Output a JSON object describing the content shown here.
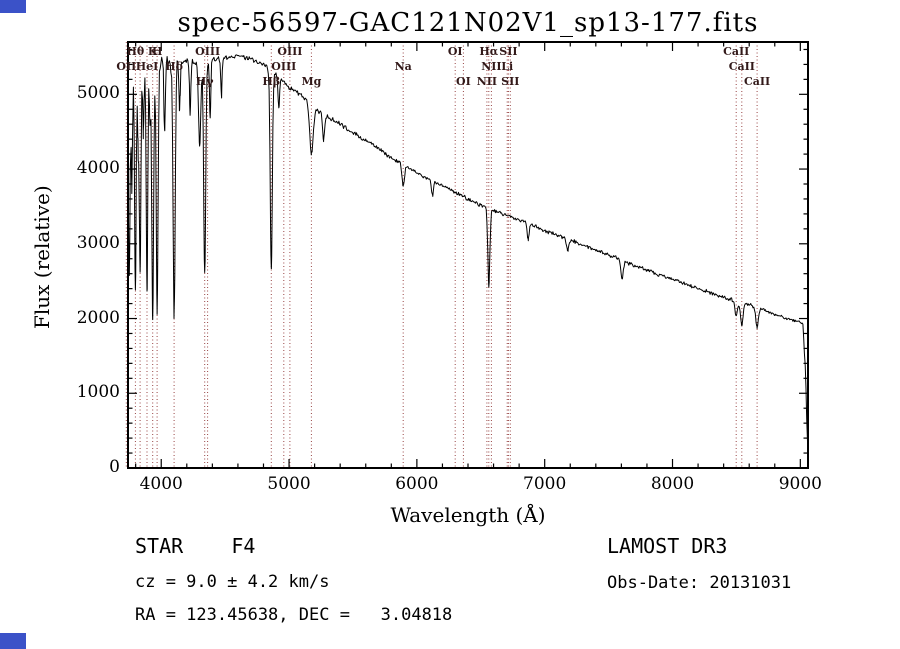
{
  "artifacts": {
    "corner_color": "#3b52c8"
  },
  "chart_data": {
    "type": "line",
    "title": "spec-56597-GAC121N02V1_sp13-177.fits",
    "xlabel": "Wavelength (Å)",
    "ylabel": "Flux (relative)",
    "xlim": [
      3740,
      9060
    ],
    "ylim": [
      0,
      5700
    ],
    "x_ticks": [
      4000,
      5000,
      6000,
      7000,
      8000,
      9000
    ],
    "x_minor_step": 200,
    "y_ticks": [
      0,
      1000,
      2000,
      3000,
      4000,
      5000
    ],
    "y_minor_step": 200,
    "grid": false,
    "legend": "none",
    "line_color": "#000000",
    "marker_line_color": "#984444",
    "noise_seed": 20131031,
    "sample_step": 6,
    "continuum_anchors": [
      [
        3740,
        4600
      ],
      [
        3760,
        5100
      ],
      [
        3780,
        5250
      ],
      [
        3800,
        5300
      ],
      [
        3850,
        5350
      ],
      [
        3900,
        5380
      ],
      [
        3950,
        5380
      ],
      [
        4000,
        5400
      ],
      [
        4050,
        5400
      ],
      [
        4100,
        5410
      ],
      [
        4150,
        5420
      ],
      [
        4200,
        5450
      ],
      [
        4250,
        5430
      ],
      [
        4300,
        5430
      ],
      [
        4350,
        5440
      ],
      [
        4400,
        5450
      ],
      [
        4450,
        5470
      ],
      [
        4500,
        5490
      ],
      [
        4550,
        5500
      ],
      [
        4600,
        5510
      ],
      [
        4650,
        5500
      ],
      [
        4700,
        5480
      ],
      [
        4750,
        5440
      ],
      [
        4800,
        5400
      ],
      [
        4850,
        5330
      ],
      [
        4900,
        5250
      ],
      [
        4950,
        5180
      ],
      [
        5000,
        5100
      ],
      [
        5050,
        5040
      ],
      [
        5100,
        4980
      ],
      [
        5150,
        4900
      ],
      [
        5200,
        4820
      ],
      [
        5250,
        4760
      ],
      [
        5300,
        4700
      ],
      [
        5350,
        4650
      ],
      [
        5400,
        4600
      ],
      [
        5450,
        4540
      ],
      [
        5500,
        4480
      ],
      [
        5550,
        4430
      ],
      [
        5600,
        4380
      ],
      [
        5650,
        4330
      ],
      [
        5700,
        4270
      ],
      [
        5750,
        4210
      ],
      [
        5800,
        4150
      ],
      [
        5850,
        4100
      ],
      [
        5900,
        4050
      ],
      [
        5950,
        4000
      ],
      [
        6000,
        3950
      ],
      [
        6100,
        3860
      ],
      [
        6200,
        3780
      ],
      [
        6300,
        3690
      ],
      [
        6400,
        3600
      ],
      [
        6500,
        3520
      ],
      [
        6600,
        3450
      ],
      [
        6700,
        3380
      ],
      [
        6800,
        3320
      ],
      [
        6900,
        3250
      ],
      [
        7000,
        3180
      ],
      [
        7100,
        3110
      ],
      [
        7200,
        3050
      ],
      [
        7300,
        2980
      ],
      [
        7400,
        2920
      ],
      [
        7500,
        2850
      ],
      [
        7600,
        2780
      ],
      [
        7700,
        2710
      ],
      [
        7800,
        2650
      ],
      [
        7900,
        2580
      ],
      [
        8000,
        2520
      ],
      [
        8100,
        2460
      ],
      [
        8200,
        2400
      ],
      [
        8300,
        2340
      ],
      [
        8400,
        2280
      ],
      [
        8500,
        2230
      ],
      [
        8600,
        2180
      ],
      [
        8700,
        2120
      ],
      [
        8800,
        2060
      ],
      [
        8900,
        2000
      ],
      [
        9000,
        1950
      ],
      [
        9020,
        1920
      ],
      [
        9040,
        1300
      ],
      [
        9055,
        350
      ],
      [
        9060,
        280
      ]
    ],
    "absorption_lines": [
      {
        "center": 3750,
        "depth": 2300,
        "sigma": 6
      },
      {
        "center": 3770,
        "depth": 1400,
        "sigma": 5
      },
      {
        "center": 3798,
        "depth": 2900,
        "sigma": 6
      },
      {
        "center": 3820,
        "depth": 1000,
        "sigma": 5
      },
      {
        "center": 3835,
        "depth": 2700,
        "sigma": 6
      },
      {
        "center": 3860,
        "depth": 900,
        "sigma": 5
      },
      {
        "center": 3889,
        "depth": 3000,
        "sigma": 6
      },
      {
        "center": 3912,
        "depth": 800,
        "sigma": 4
      },
      {
        "center": 3933,
        "depth": 3400,
        "sigma": 7
      },
      {
        "center": 3968,
        "depth": 3300,
        "sigma": 7
      },
      {
        "center": 4026,
        "depth": 900,
        "sigma": 5
      },
      {
        "center": 4101,
        "depth": 3400,
        "sigma": 8
      },
      {
        "center": 4144,
        "depth": 600,
        "sigma": 5
      },
      {
        "center": 4226,
        "depth": 700,
        "sigma": 5
      },
      {
        "center": 4300,
        "depth": 1100,
        "sigma": 9
      },
      {
        "center": 4340,
        "depth": 2850,
        "sigma": 8
      },
      {
        "center": 4383,
        "depth": 800,
        "sigma": 5
      },
      {
        "center": 4471,
        "depth": 500,
        "sigma": 5
      },
      {
        "center": 4861,
        "depth": 2650,
        "sigma": 8
      },
      {
        "center": 4920,
        "depth": 400,
        "sigma": 6
      },
      {
        "center": 5175,
        "depth": 650,
        "sigma": 14
      },
      {
        "center": 5270,
        "depth": 350,
        "sigma": 8
      },
      {
        "center": 5893,
        "depth": 280,
        "sigma": 9
      },
      {
        "center": 6122,
        "depth": 200,
        "sigma": 7
      },
      {
        "center": 6563,
        "depth": 1050,
        "sigma": 8
      },
      {
        "center": 6870,
        "depth": 220,
        "sigma": 7
      },
      {
        "center": 7180,
        "depth": 150,
        "sigma": 8
      },
      {
        "center": 7605,
        "depth": 250,
        "sigma": 9
      },
      {
        "center": 8498,
        "depth": 200,
        "sigma": 9
      },
      {
        "center": 8542,
        "depth": 300,
        "sigma": 10
      },
      {
        "center": 8662,
        "depth": 260,
        "sigma": 10
      }
    ],
    "noise_segments": [
      [
        3740,
        4150,
        125
      ],
      [
        4150,
        4500,
        55
      ],
      [
        4500,
        5600,
        40
      ],
      [
        5600,
        7500,
        33
      ],
      [
        7500,
        9060,
        30
      ]
    ],
    "line_markers": [
      {
        "wavelength": 3727,
        "label": "OII",
        "row": 2
      },
      {
        "wavelength": 3798,
        "label": "Hθ",
        "row": 1
      },
      {
        "wavelength": 3835,
        "label": "",
        "row": 0
      },
      {
        "wavelength": 3889,
        "label": "HeI",
        "row": 2
      },
      {
        "wavelength": 3933,
        "label": "K",
        "row": 1
      },
      {
        "wavelength": 3968,
        "label": "H",
        "row": 1
      },
      {
        "wavelength": 4101,
        "label": "Hδ",
        "row": 2
      },
      {
        "wavelength": 4340,
        "label": "Hγ",
        "row": 3
      },
      {
        "wavelength": 4363,
        "label": "OIII",
        "row": 1
      },
      {
        "wavelength": 4861,
        "label": "Hβ",
        "row": 3
      },
      {
        "wavelength": 4959,
        "label": "OIII",
        "row": 2
      },
      {
        "wavelength": 5007,
        "label": "OIII",
        "row": 1
      },
      {
        "wavelength": 5175,
        "label": "Mg",
        "row": 3
      },
      {
        "wavelength": 5893,
        "label": "Na",
        "row": 2
      },
      {
        "wavelength": 6300,
        "label": "OI",
        "row": 1
      },
      {
        "wavelength": 6364,
        "label": "OI",
        "row": 3
      },
      {
        "wavelength": 6548,
        "label": "NII",
        "row": 3
      },
      {
        "wavelength": 6563,
        "label": "Hα",
        "row": 1
      },
      {
        "wavelength": 6583,
        "label": "NII",
        "row": 2
      },
      {
        "wavelength": 6707,
        "label": "Li",
        "row": 2
      },
      {
        "wavelength": 6716,
        "label": "SII",
        "row": 1
      },
      {
        "wavelength": 6731,
        "label": "SII",
        "row": 3
      },
      {
        "wavelength": 8498,
        "label": "CaII",
        "row": 1
      },
      {
        "wavelength": 8542,
        "label": "CaII",
        "row": 2
      },
      {
        "wavelength": 8662,
        "label": "CaII",
        "row": 3
      }
    ]
  },
  "footer": {
    "classification": "STAR    F4",
    "cz": "cz = 9.0 ± 4.2 km/s",
    "radec": "RA = 123.45638, DEC =   3.04818",
    "survey": "LAMOST DR3",
    "obs_date": "Obs-Date: 20131031"
  }
}
